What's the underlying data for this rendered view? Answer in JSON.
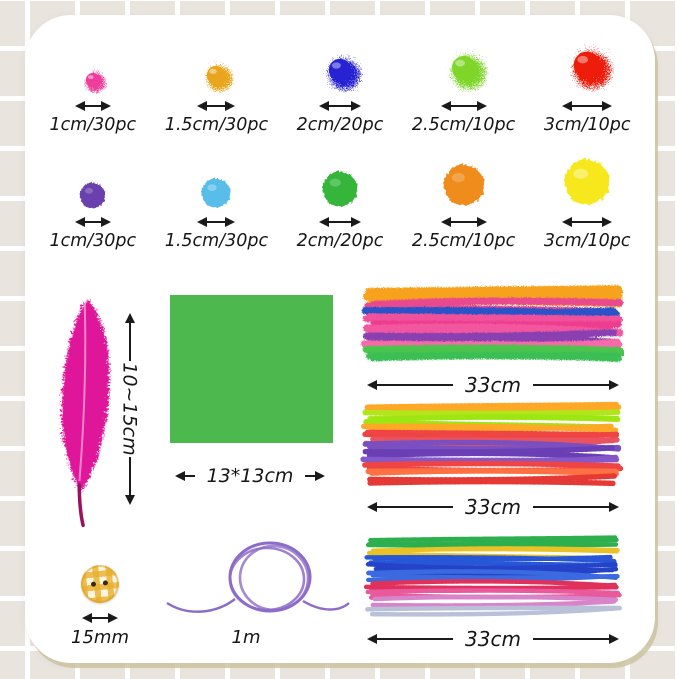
{
  "pompom_rows": [
    {
      "type": "glitter-pompoms",
      "items": [
        {
          "label": "1cm/30pc",
          "color": "#ef3d9b"
        },
        {
          "label": "1.5cm/30pc",
          "color": "#e9a51d"
        },
        {
          "label": "2cm/20pc",
          "color": "#2823d2"
        },
        {
          "label": "2.5cm/10pc",
          "color": "#7fd629"
        },
        {
          "label": "3cm/10pc",
          "color": "#ee1d0b"
        }
      ]
    },
    {
      "type": "plain-pompoms",
      "items": [
        {
          "label": "1cm/30pc",
          "color": "#6a3fae"
        },
        {
          "label": "1.5cm/30pc",
          "color": "#58bde9"
        },
        {
          "label": "2cm/20pc",
          "color": "#35b63b"
        },
        {
          "label": "2.5cm/10pc",
          "color": "#f08c1b"
        },
        {
          "label": "3cm/10pc",
          "color": "#f6e81e"
        }
      ]
    }
  ],
  "feather": {
    "length_label": "10~15cm",
    "color": "#e0189a",
    "shaft_color": "#ffb3dc",
    "quill_color": "#9c1060"
  },
  "paper": {
    "size_label": "13*13cm",
    "color": "#4db84d"
  },
  "bundles": [
    {
      "length_label": "33cm",
      "style": "chenille",
      "colors": [
        "#f7a21b",
        "#f7a21b",
        "#e8488f",
        "#2a52c9",
        "#f0519c",
        "#ee3d8f",
        "#f2579f",
        "#8a3fb0",
        "#f56ba8",
        "#4cc44e",
        "#3bbf55",
        "#f5d327"
      ]
    },
    {
      "length_label": "33cm",
      "style": "striped",
      "colors": [
        "#ffa726",
        "#b2e61b",
        "#9ee514",
        "#ffa726",
        "#ef4444",
        "#e8535f",
        "#7b4fc0",
        "#6a3fb5",
        "#8458c9",
        "#ef4444",
        "#ff7043",
        "#e53935"
      ]
    },
    {
      "length_label": "33cm",
      "style": "tinsel",
      "colors": [
        "#2eaf4e",
        "#e8c227",
        "#2757d6",
        "#2443c9",
        "#3b6ae0",
        "#e0315c",
        "#e85a9b",
        "#d884c9",
        "#b9c1d9",
        "#8a4bbf",
        "#7e3fb8",
        "#9656cc"
      ]
    }
  ],
  "button": {
    "size_label": "15mm",
    "plaid_color": "#e9af2a"
  },
  "cord": {
    "length_label": "1m",
    "color": "#8d6cc8"
  }
}
